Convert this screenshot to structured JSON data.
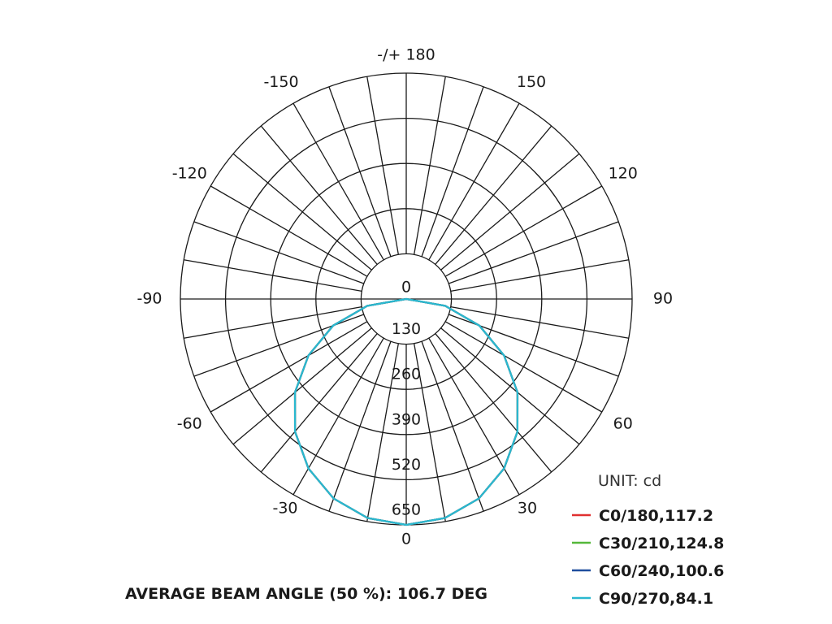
{
  "chart_data": {
    "type": "polar",
    "unit_label": "UNIT: cd",
    "angle_labels": [
      {
        "deg": 180,
        "text": "-/+ 180"
      },
      {
        "deg": -150,
        "text": "-150"
      },
      {
        "deg": 150,
        "text": "150"
      },
      {
        "deg": -120,
        "text": "-120"
      },
      {
        "deg": 120,
        "text": "120"
      },
      {
        "deg": -90,
        "text": "-90"
      },
      {
        "deg": 90,
        "text": "90"
      },
      {
        "deg": -60,
        "text": "-60"
      },
      {
        "deg": 60,
        "text": "60"
      },
      {
        "deg": -30,
        "text": "-30"
      },
      {
        "deg": 30,
        "text": "30"
      },
      {
        "deg": 0,
        "text": "0"
      }
    ],
    "rings": [
      {
        "value": 0,
        "text": "0"
      },
      {
        "value": 130,
        "text": "130"
      },
      {
        "value": 260,
        "text": "260"
      },
      {
        "value": 390,
        "text": "390"
      },
      {
        "value": 520,
        "text": "520"
      },
      {
        "value": 650,
        "text": "650"
      }
    ],
    "r_max": 650,
    "series": [
      {
        "name": "C0/180,117.2",
        "color": "#e03030",
        "angles": [
          0,
          10,
          20,
          30,
          40,
          50,
          60,
          70,
          80,
          90
        ],
        "values": [
          650,
          640,
          611,
          563,
          498,
          418,
          325,
          224,
          114,
          0
        ]
      },
      {
        "name": "C30/210,124.8",
        "color": "#55b83a",
        "angles": [
          0,
          10,
          20,
          30,
          40,
          50,
          60,
          70,
          80,
          90
        ],
        "values": [
          650,
          640,
          611,
          563,
          498,
          418,
          325,
          224,
          114,
          0
        ]
      },
      {
        "name": "C60/240,100.6",
        "color": "#1f4e9e",
        "angles": [
          0,
          10,
          20,
          30,
          40,
          50,
          60,
          70,
          80,
          90
        ],
        "values": [
          650,
          640,
          611,
          563,
          498,
          418,
          325,
          224,
          114,
          0
        ]
      },
      {
        "name": "C90/270,84.1",
        "color": "#2ab8cf",
        "angles": [
          0,
          10,
          20,
          30,
          40,
          50,
          60,
          70,
          80,
          90
        ],
        "values": [
          650,
          640,
          611,
          563,
          498,
          418,
          325,
          224,
          114,
          0
        ]
      }
    ]
  },
  "footer": {
    "beam_angle": "AVERAGE BEAM ANGLE (50 %): 106.7 DEG"
  }
}
